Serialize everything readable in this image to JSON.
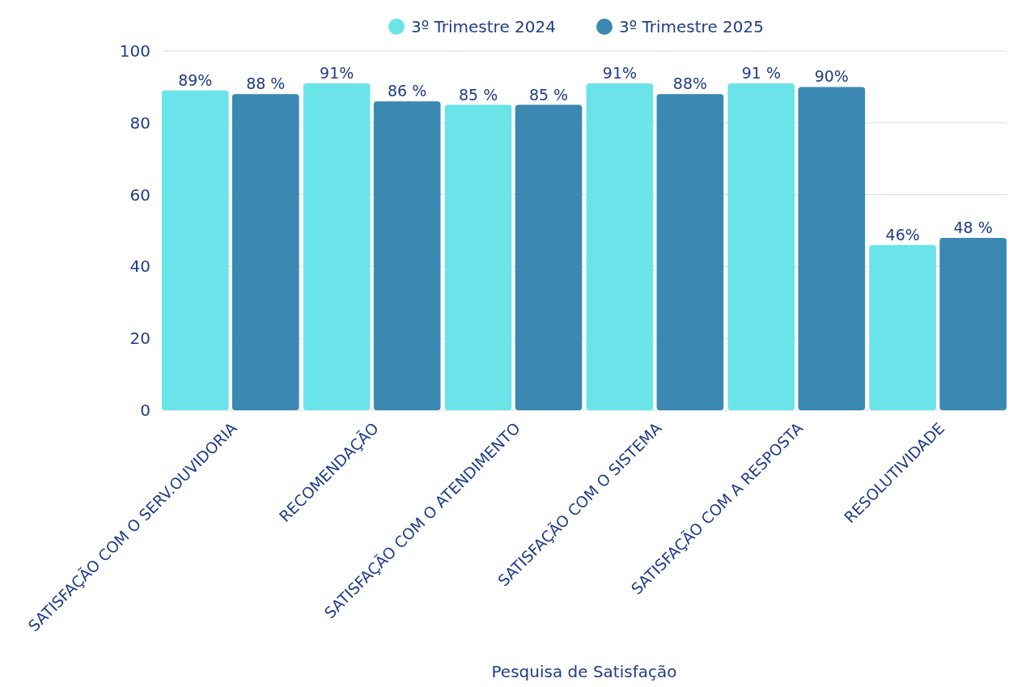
{
  "chart_data": {
    "type": "bar",
    "xlabel": "Pesquisa de Satisfação",
    "categories": [
      "SATISFAÇÃO COM O SERV.OUVIDORIA",
      "RECOMENDAÇÃO",
      "SATISFAÇÃO COM O ATENDIMENTO",
      "SATISFAÇÃO COM O SISTEMA",
      "SATISFAÇÃO COM A RESPOSTA",
      "RESOLUTIVIDADE"
    ],
    "series": [
      {
        "name": "3º Trimestre 2024",
        "color": "#6ae4e8",
        "values": [
          89,
          91,
          85,
          91,
          91,
          46
        ],
        "value_labels": [
          "89%",
          "91%",
          "85 %",
          "91%",
          "91 %",
          "46%"
        ]
      },
      {
        "name": "3º Trimestre 2025",
        "color": "#3b88b3",
        "values": [
          88,
          86,
          85,
          88,
          90,
          48
        ],
        "value_labels": [
          "88 %",
          "86 %",
          "85 %",
          "88%",
          "90%",
          "48 %"
        ]
      }
    ],
    "ylim": [
      0,
      100
    ],
    "yticks": [
      0,
      20,
      40,
      60,
      80,
      100
    ],
    "grid": "y",
    "legend": "top"
  }
}
